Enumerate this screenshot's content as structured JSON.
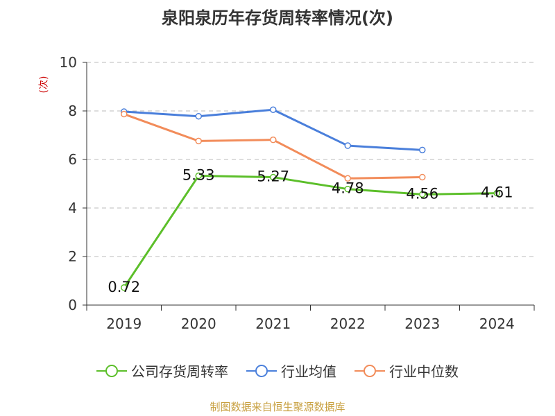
{
  "chart_data": {
    "type": "line",
    "title": "泉阳泉历年存货周转率情况(次)",
    "ylabel": "(次)",
    "categories": [
      "2019",
      "2020",
      "2021",
      "2022",
      "2023",
      "2024"
    ],
    "ylim": [
      0,
      10
    ],
    "yticks": [
      0,
      2,
      4,
      6,
      8,
      10
    ],
    "grid": true,
    "legend_position": "bottom-center",
    "series": [
      {
        "name": "公司存货周转率",
        "color": "#5cbf2a",
        "values": [
          0.72,
          5.33,
          5.27,
          4.78,
          4.56,
          4.61
        ],
        "show_labels": true
      },
      {
        "name": "行业均值",
        "color": "#4a7fdb",
        "values": [
          7.97,
          7.78,
          8.05,
          6.57,
          6.39,
          null
        ],
        "show_labels": false
      },
      {
        "name": "行业中位数",
        "color": "#f28c5a",
        "values": [
          7.87,
          6.76,
          6.81,
          5.22,
          5.27,
          null
        ],
        "show_labels": false
      }
    ]
  },
  "source": "制图数据来自恒生聚源数据库"
}
